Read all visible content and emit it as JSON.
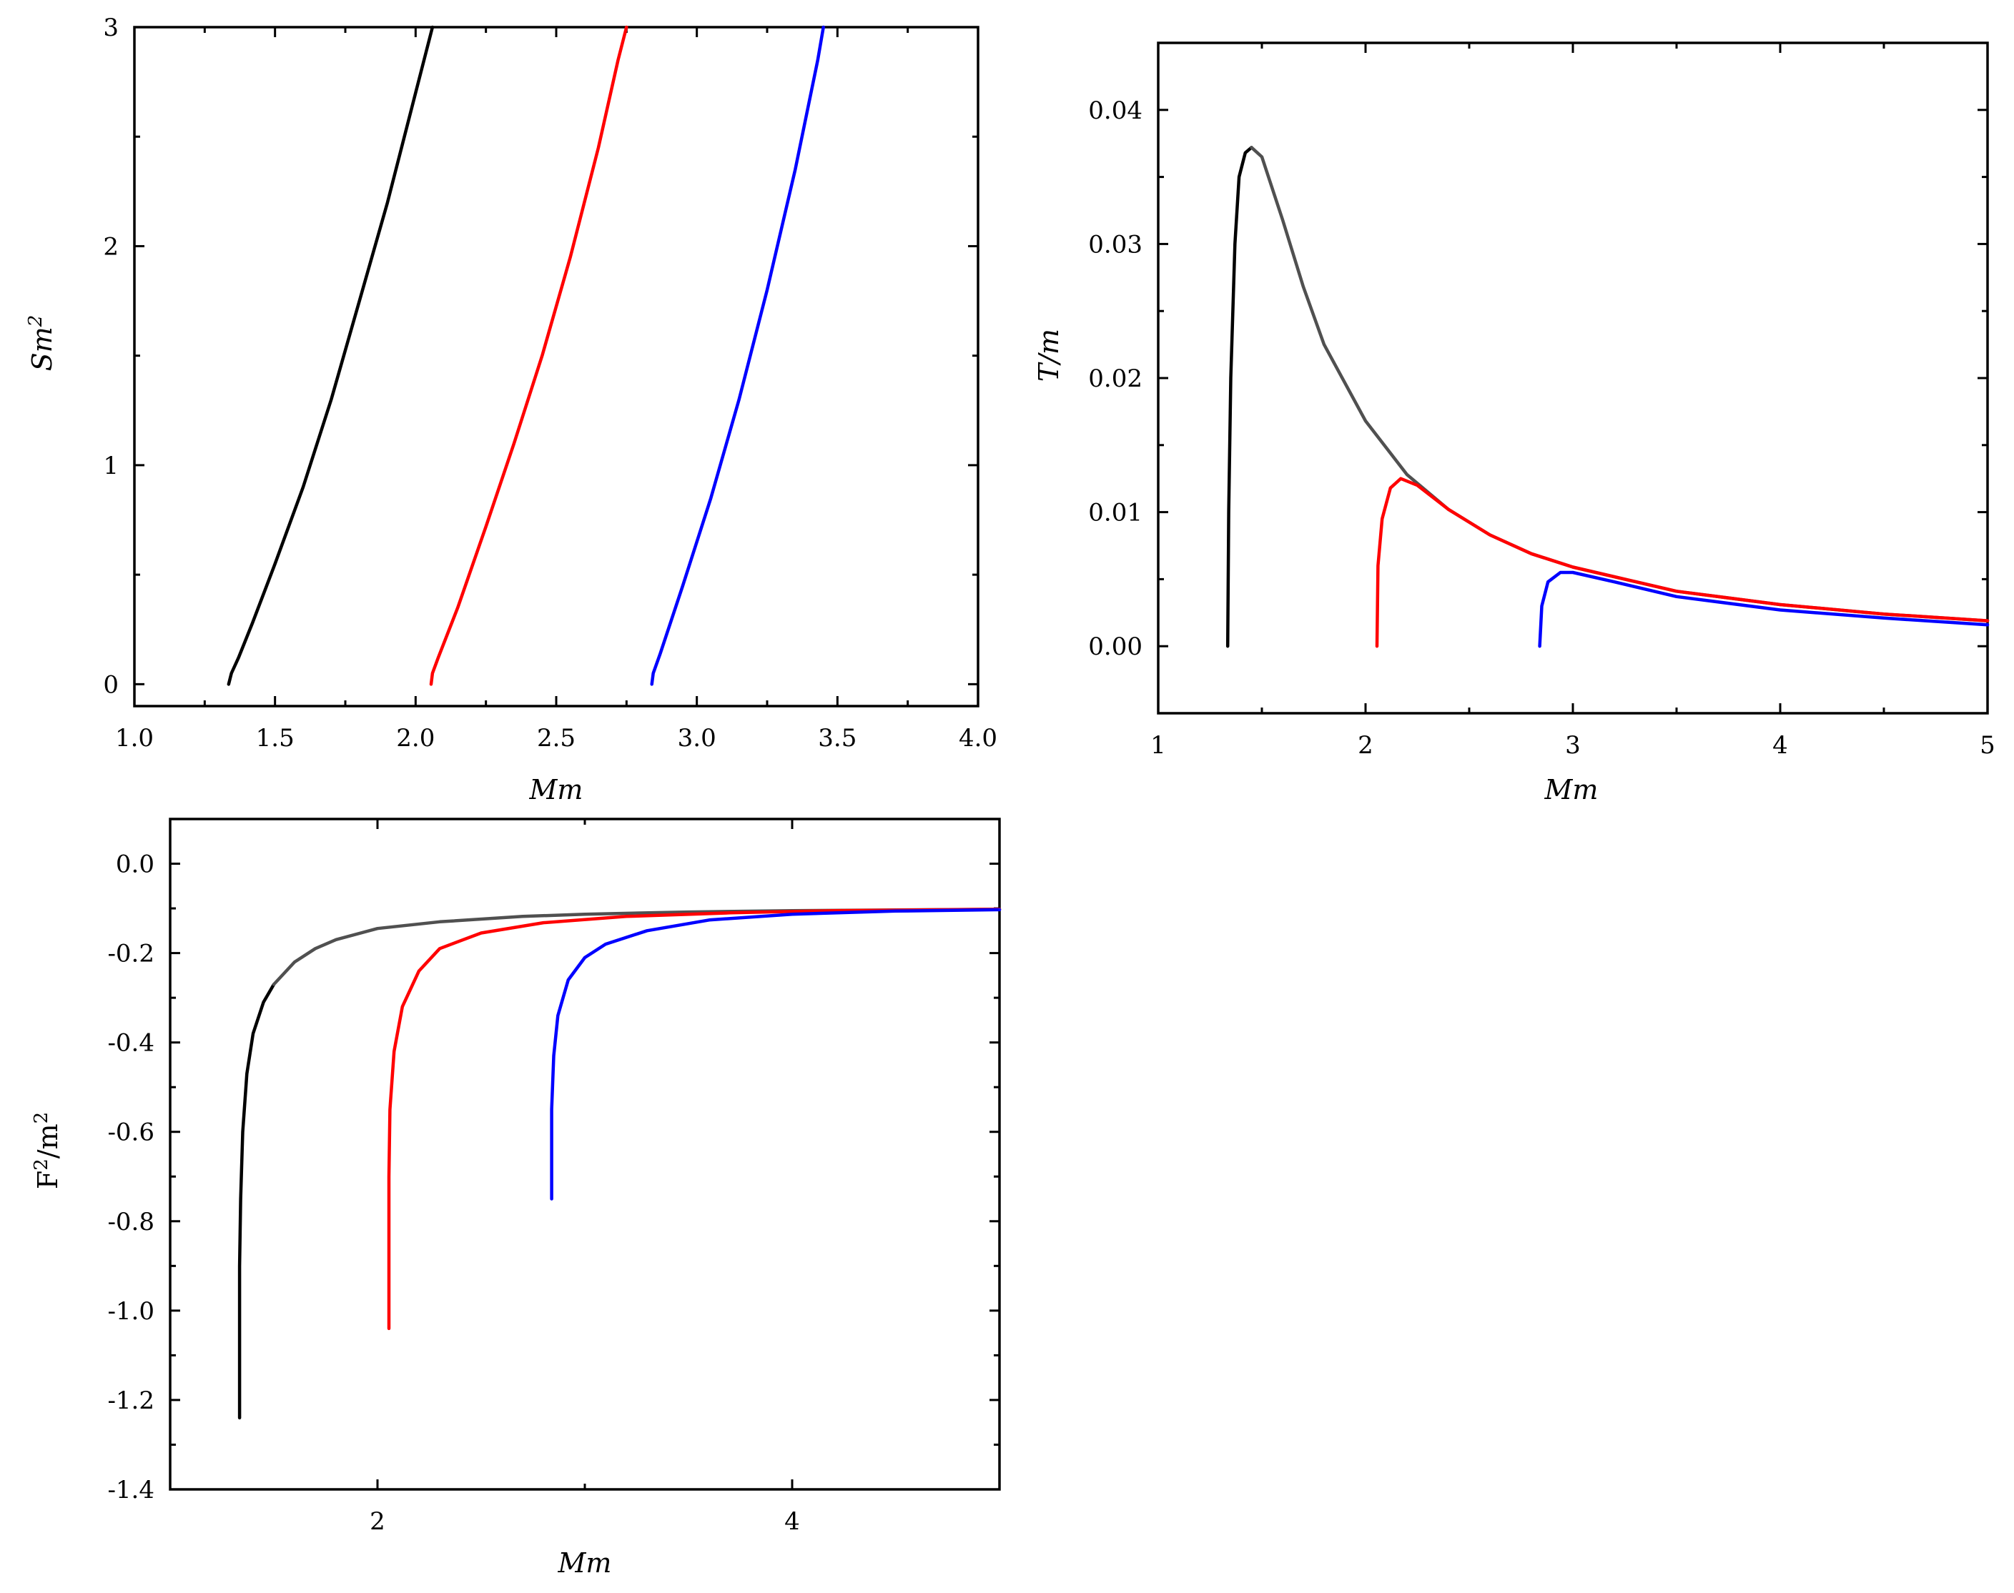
{
  "colors": {
    "black": "#000000",
    "red": "#ff0000",
    "blue": "#0000ff",
    "grey": "#505050"
  },
  "chart_data": [
    {
      "type": "line",
      "xlabel": "Mm",
      "ylabel_main": "Sm",
      "ylabel_sup": "2",
      "xlim": [
        1.0,
        4.0
      ],
      "ylim": [
        -0.1,
        3.0
      ],
      "xticks": [
        1.0,
        1.5,
        2.0,
        2.5,
        3.0,
        3.5,
        4.0
      ],
      "xtick_labels": [
        "1.0",
        "1.5",
        "2.0",
        "2.5",
        "3.0",
        "3.5",
        "4.0"
      ],
      "yticks": [
        0,
        1,
        2,
        3
      ],
      "ytick_labels": [
        "0",
        "1",
        "2",
        "3"
      ],
      "series": [
        {
          "color": "black",
          "points": [
            [
              1.335,
              0.0
            ],
            [
              1.345,
              0.05
            ],
            [
              1.37,
              0.12
            ],
            [
              1.42,
              0.28
            ],
            [
              1.5,
              0.55
            ],
            [
              1.6,
              0.9
            ],
            [
              1.7,
              1.3
            ],
            [
              1.8,
              1.75
            ],
            [
              1.9,
              2.2
            ],
            [
              2.0,
              2.7
            ],
            [
              2.06,
              3.0
            ]
          ]
        },
        {
          "color": "red",
          "points": [
            [
              2.055,
              0.0
            ],
            [
              2.06,
              0.05
            ],
            [
              2.08,
              0.12
            ],
            [
              2.15,
              0.35
            ],
            [
              2.25,
              0.72
            ],
            [
              2.35,
              1.1
            ],
            [
              2.45,
              1.5
            ],
            [
              2.55,
              1.95
            ],
            [
              2.65,
              2.45
            ],
            [
              2.72,
              2.85
            ],
            [
              2.75,
              3.0
            ]
          ]
        },
        {
          "color": "blue",
          "points": [
            [
              2.84,
              0.0
            ],
            [
              2.845,
              0.05
            ],
            [
              2.87,
              0.14
            ],
            [
              2.95,
              0.45
            ],
            [
              3.05,
              0.85
            ],
            [
              3.15,
              1.3
            ],
            [
              3.25,
              1.8
            ],
            [
              3.35,
              2.35
            ],
            [
              3.43,
              2.85
            ],
            [
              3.45,
              3.0
            ]
          ]
        }
      ]
    },
    {
      "type": "line",
      "xlabel": "Mm",
      "ylabel": "T/m",
      "xlim": [
        1,
        5
      ],
      "ylim": [
        -0.005,
        0.045
      ],
      "xticks": [
        1,
        2,
        3,
        4,
        5
      ],
      "xtick_labels": [
        "1",
        "2",
        "3",
        "4",
        "5"
      ],
      "yticks": [
        0.0,
        0.01,
        0.02,
        0.03,
        0.04
      ],
      "ytick_labels": [
        "0.00",
        "0.01",
        "0.02",
        "0.03",
        "0.04"
      ],
      "series": [
        {
          "color": "black",
          "points": [
            [
              1.335,
              0.0
            ],
            [
              1.34,
              0.01
            ],
            [
              1.35,
              0.02
            ],
            [
              1.37,
              0.03
            ],
            [
              1.39,
              0.035
            ],
            [
              1.42,
              0.0368
            ],
            [
              1.45,
              0.0372
            ]
          ]
        },
        {
          "color": "grey",
          "points": [
            [
              1.45,
              0.0372
            ],
            [
              1.5,
              0.0365
            ],
            [
              1.6,
              0.0318
            ],
            [
              1.7,
              0.0268
            ],
            [
              1.8,
              0.0225
            ],
            [
              2.0,
              0.0168
            ],
            [
              2.2,
              0.0128
            ],
            [
              2.4,
              0.0102
            ],
            [
              2.6,
              0.0083
            ],
            [
              2.8,
              0.0069
            ],
            [
              3.0,
              0.0059
            ],
            [
              3.5,
              0.0041
            ],
            [
              4.0,
              0.0031
            ],
            [
              4.5,
              0.0024
            ],
            [
              5.0,
              0.0019
            ]
          ]
        },
        {
          "color": "red",
          "points": [
            [
              2.055,
              0.0
            ],
            [
              2.06,
              0.006
            ],
            [
              2.08,
              0.0095
            ],
            [
              2.12,
              0.0118
            ],
            [
              2.17,
              0.0125
            ],
            [
              2.25,
              0.012
            ],
            [
              2.4,
              0.0102
            ],
            [
              2.6,
              0.0083
            ],
            [
              2.8,
              0.0069
            ],
            [
              3.0,
              0.0059
            ],
            [
              3.5,
              0.0041
            ],
            [
              4.0,
              0.0031
            ],
            [
              4.5,
              0.0024
            ],
            [
              5.0,
              0.0019
            ]
          ]
        },
        {
          "color": "blue",
          "points": [
            [
              2.84,
              0.0
            ],
            [
              2.85,
              0.003
            ],
            [
              2.88,
              0.0048
            ],
            [
              2.94,
              0.0055
            ],
            [
              3.0,
              0.0055
            ],
            [
              3.2,
              0.0048
            ],
            [
              3.5,
              0.0037
            ],
            [
              4.0,
              0.0027
            ],
            [
              4.5,
              0.0021
            ],
            [
              5.0,
              0.0016
            ]
          ]
        }
      ]
    },
    {
      "type": "line",
      "xlabel": "Mm",
      "ylabel_main": "F",
      "ylabel_sup": "2",
      "ylabel_rest": "/m",
      "ylabel_sup2": "2",
      "xlim": [
        1,
        5
      ],
      "ylim": [
        -1.4,
        0.1
      ],
      "xticks": [
        2,
        4
      ],
      "xtick_labels": [
        "2",
        "4"
      ],
      "yticks": [
        0.0,
        -0.2,
        -0.4,
        -0.6,
        -0.8,
        -1.0,
        -1.2,
        -1.4
      ],
      "ytick_labels": [
        "0.0",
        "-0.2",
        "-0.4",
        "-0.6",
        "-0.8",
        "-1.0",
        "-1.2",
        "-1.4"
      ],
      "series": [
        {
          "color": "black",
          "points": [
            [
              1.335,
              -1.24
            ],
            [
              1.335,
              -0.9
            ],
            [
              1.34,
              -0.75
            ],
            [
              1.35,
              -0.6
            ],
            [
              1.37,
              -0.47
            ],
            [
              1.4,
              -0.38
            ],
            [
              1.45,
              -0.31
            ],
            [
              1.5,
              -0.27
            ]
          ]
        },
        {
          "color": "grey",
          "points": [
            [
              1.5,
              -0.27
            ],
            [
              1.6,
              -0.22
            ],
            [
              1.7,
              -0.19
            ],
            [
              1.8,
              -0.17
            ],
            [
              2.0,
              -0.145
            ],
            [
              2.3,
              -0.13
            ],
            [
              2.7,
              -0.118
            ],
            [
              3.0,
              -0.113
            ],
            [
              3.5,
              -0.108
            ],
            [
              4.0,
              -0.105
            ],
            [
              5.0,
              -0.102
            ]
          ]
        },
        {
          "color": "red",
          "points": [
            [
              2.055,
              -1.04
            ],
            [
              2.055,
              -0.7
            ],
            [
              2.06,
              -0.55
            ],
            [
              2.08,
              -0.42
            ],
            [
              2.12,
              -0.32
            ],
            [
              2.2,
              -0.24
            ],
            [
              2.3,
              -0.19
            ],
            [
              2.5,
              -0.155
            ],
            [
              2.8,
              -0.132
            ],
            [
              3.2,
              -0.118
            ],
            [
              3.7,
              -0.11
            ],
            [
              4.2,
              -0.105
            ],
            [
              5.0,
              -0.102
            ]
          ]
        },
        {
          "color": "blue",
          "points": [
            [
              2.84,
              -0.75
            ],
            [
              2.84,
              -0.55
            ],
            [
              2.85,
              -0.43
            ],
            [
              2.87,
              -0.34
            ],
            [
              2.92,
              -0.26
            ],
            [
              3.0,
              -0.21
            ],
            [
              3.1,
              -0.18
            ],
            [
              3.3,
              -0.15
            ],
            [
              3.6,
              -0.126
            ],
            [
              4.0,
              -0.113
            ],
            [
              4.5,
              -0.106
            ],
            [
              5.0,
              -0.103
            ]
          ]
        }
      ]
    }
  ]
}
